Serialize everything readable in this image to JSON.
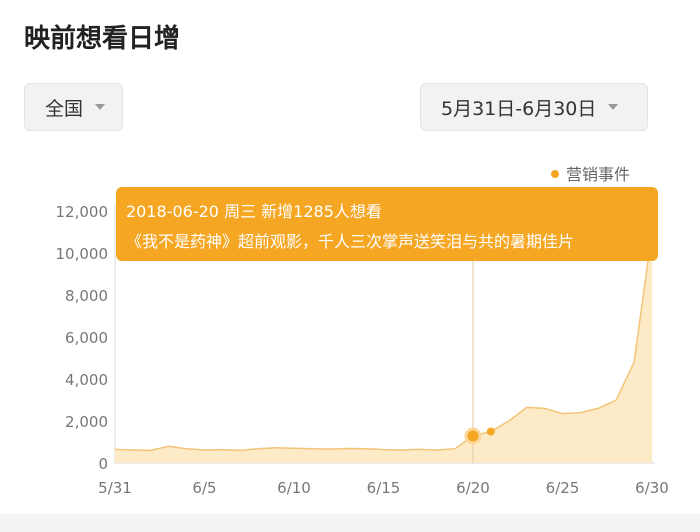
{
  "header": {
    "title": "映前想看日增"
  },
  "filters": {
    "region": "全国",
    "date_range": "5月31日-6月30日"
  },
  "legend": {
    "label": "营销事件",
    "color": "#f5a623"
  },
  "tooltip": {
    "line1": "2018-06-20 周三 新增1285人想看",
    "line2": "《我不是药神》超前观影，千人三次掌声送笑泪与共的暑期佳片"
  },
  "colors": {
    "accent": "#f5a623",
    "area": "#fdebc8",
    "line": "#f3c477"
  },
  "chart_data": {
    "type": "area",
    "x": [
      "5/31",
      "6/1",
      "6/2",
      "6/3",
      "6/4",
      "6/5",
      "6/6",
      "6/7",
      "6/8",
      "6/9",
      "6/10",
      "6/11",
      "6/12",
      "6/13",
      "6/14",
      "6/15",
      "6/16",
      "6/17",
      "6/18",
      "6/19",
      "6/20",
      "6/21",
      "6/22",
      "6/23",
      "6/24",
      "6/25",
      "6/26",
      "6/27",
      "6/28",
      "6/29",
      "6/30"
    ],
    "values": [
      650,
      620,
      600,
      800,
      680,
      620,
      640,
      600,
      680,
      730,
      700,
      680,
      660,
      690,
      680,
      640,
      620,
      650,
      620,
      680,
      1285,
      1500,
      2000,
      2650,
      2600,
      2350,
      2400,
      2600,
      3000,
      4800,
      11000
    ],
    "xticks": [
      "5/31",
      "6/5",
      "6/10",
      "6/15",
      "6/20",
      "6/25",
      "6/30"
    ],
    "ylim": [
      0,
      12000
    ],
    "yticks": [
      "0",
      "2,000",
      "4,000",
      "6,000",
      "8,000",
      "10,000",
      "12,000"
    ],
    "highlight_points": [
      "6/20",
      "6/21"
    ],
    "highlight_index": 20
  }
}
